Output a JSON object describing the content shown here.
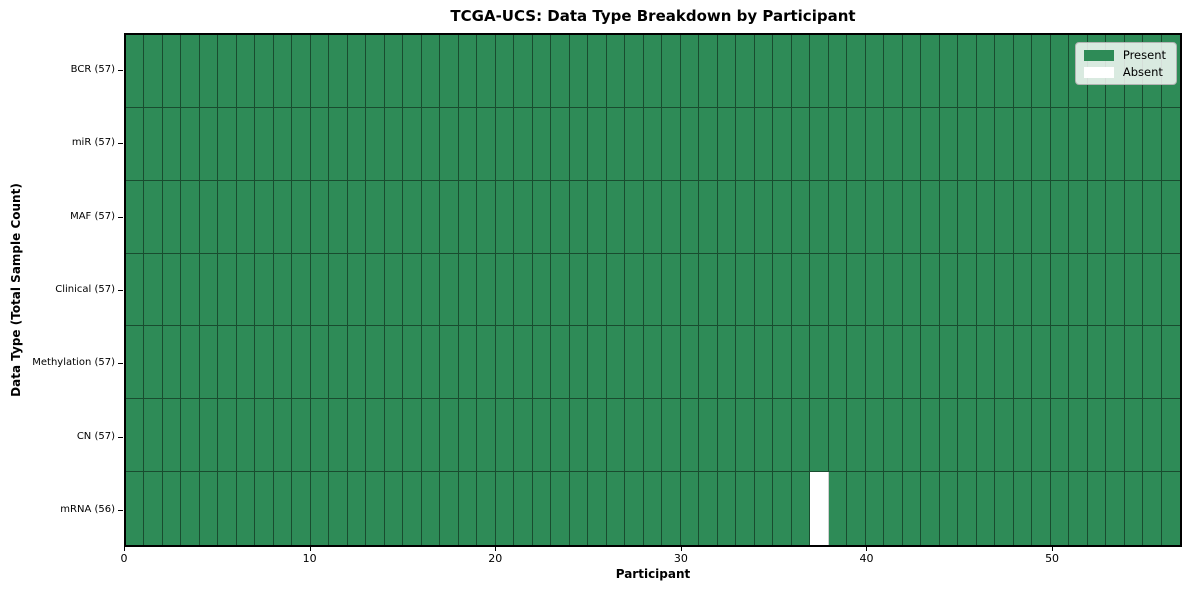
{
  "chart_data": {
    "type": "heatmap",
    "title": "TCGA-UCS: Data Type Breakdown by Participant",
    "xlabel": "Participant",
    "ylabel": "Data Type (Total Sample Count)",
    "n_participants": 57,
    "xlim": [
      0,
      57
    ],
    "x_ticks": [
      0,
      10,
      20,
      30,
      40,
      50
    ],
    "grid": "cell-borders",
    "rows": [
      {
        "label": "BCR (57)",
        "data_type": "BCR",
        "total": 57,
        "absent_participants": []
      },
      {
        "label": "miR (57)",
        "data_type": "miR",
        "total": 57,
        "absent_participants": []
      },
      {
        "label": "MAF (57)",
        "data_type": "MAF",
        "total": 57,
        "absent_participants": []
      },
      {
        "label": "Clinical (57)",
        "data_type": "Clinical",
        "total": 57,
        "absent_participants": []
      },
      {
        "label": "Methylation (57)",
        "data_type": "Methylation",
        "total": 57,
        "absent_participants": []
      },
      {
        "label": "CN (57)",
        "data_type": "CN",
        "total": 57,
        "absent_participants": []
      },
      {
        "label": "mRNA (56)",
        "data_type": "mRNA",
        "total": 56,
        "absent_participants": [
          37
        ]
      }
    ],
    "legend": {
      "position": "upper right",
      "items": [
        {
          "label": "Present",
          "color": "#2e8b57"
        },
        {
          "label": "Absent",
          "color": "#ffffff"
        }
      ]
    },
    "colors": {
      "present": "#2e8b57",
      "absent": "#ffffff",
      "grid_line": "rgba(0,0,0,0.45)",
      "plot_border": "#000000"
    }
  }
}
